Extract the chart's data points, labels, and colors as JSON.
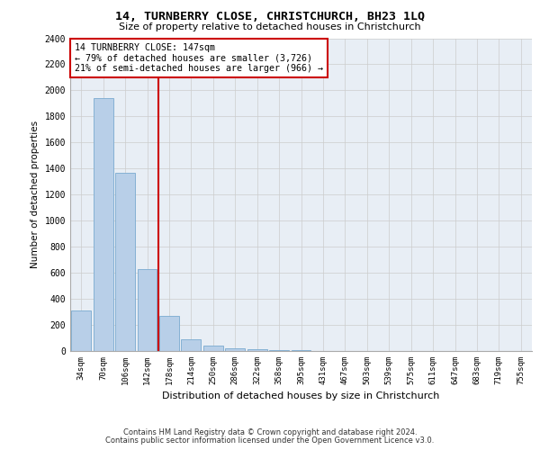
{
  "title": "14, TURNBERRY CLOSE, CHRISTCHURCH, BH23 1LQ",
  "subtitle": "Size of property relative to detached houses in Christchurch",
  "xlabel": "Distribution of detached houses by size in Christchurch",
  "ylabel": "Number of detached properties",
  "categories": [
    "34sqm",
    "70sqm",
    "106sqm",
    "142sqm",
    "178sqm",
    "214sqm",
    "250sqm",
    "286sqm",
    "322sqm",
    "358sqm",
    "395sqm",
    "431sqm",
    "467sqm",
    "503sqm",
    "539sqm",
    "575sqm",
    "611sqm",
    "647sqm",
    "683sqm",
    "719sqm",
    "755sqm"
  ],
  "values": [
    310,
    1940,
    1370,
    630,
    270,
    90,
    40,
    20,
    15,
    10,
    5,
    0,
    0,
    0,
    0,
    0,
    0,
    0,
    0,
    0,
    0
  ],
  "bar_color": "#b8cfe8",
  "bar_edge_color": "#7aaad0",
  "property_line_color": "#cc0000",
  "annotation_text": "14 TURNBERRY CLOSE: 147sqm\n← 79% of detached houses are smaller (3,726)\n21% of semi-detached houses are larger (966) →",
  "annotation_box_color": "#cc0000",
  "ylim": [
    0,
    2400
  ],
  "yticks": [
    0,
    200,
    400,
    600,
    800,
    1000,
    1200,
    1400,
    1600,
    1800,
    2000,
    2200,
    2400
  ],
  "grid_color": "#cccccc",
  "background_color": "#e8eef5",
  "footer_line1": "Contains HM Land Registry data © Crown copyright and database right 2024.",
  "footer_line2": "Contains public sector information licensed under the Open Government Licence v3.0."
}
